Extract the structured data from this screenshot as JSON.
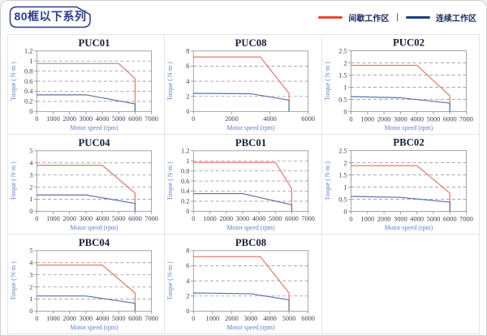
{
  "page": {
    "series_tag": "80框以下系列"
  },
  "legend": {
    "intermittent_label": "间歇工作区",
    "separator": "|",
    "continuous_label": "连续工作区",
    "intermittent_color": "#e8472b",
    "continuous_color": "#1e3f7f"
  },
  "colors": {
    "chart_red": "#e4796b",
    "chart_blue": "#5a70a5",
    "grid_line": "#9a9a9a",
    "plot_border": "#9a9a9a",
    "tag_border": "#2b3a8c"
  },
  "chart_data": [
    {
      "type": "line",
      "title": "PUC01",
      "xlabel": "Motor speed (rpm)",
      "ylabel": "Torque ( N·m )",
      "xlim": [
        0,
        7000
      ],
      "ylim": [
        0,
        1.2
      ],
      "xticks": [
        0,
        1000,
        2000,
        3000,
        4000,
        5000,
        6000,
        7000
      ],
      "yticks": [
        0,
        0.2,
        0.4,
        0.6,
        0.8,
        1,
        1.2
      ],
      "grid": "horizontal-dashed",
      "legend_position": "none",
      "series": [
        {
          "name": "间歇工作区",
          "color": "#e4796b",
          "points": [
            [
              0,
              0.95
            ],
            [
              5000,
              0.95
            ],
            [
              6000,
              0.65
            ],
            [
              6000,
              0
            ]
          ]
        },
        {
          "name": "连续工作区",
          "color": "#5a70a5",
          "points": [
            [
              0,
              0.33
            ],
            [
              3000,
              0.33
            ],
            [
              6000,
              0.15
            ],
            [
              6000,
              0
            ]
          ]
        }
      ]
    },
    {
      "type": "line",
      "title": "PUC08",
      "xlabel": "Motor speed (rpm)",
      "ylabel": "Torque ( N·m )",
      "xlim": [
        0,
        6000
      ],
      "ylim": [
        0,
        8
      ],
      "xticks": [
        0,
        2000,
        4000,
        6000
      ],
      "yticks": [
        0,
        2,
        4,
        6,
        8
      ],
      "grid": "horizontal-dashed",
      "legend_position": "none",
      "series": [
        {
          "name": "间歇工作区",
          "color": "#e4796b",
          "points": [
            [
              0,
              7.2
            ],
            [
              3500,
              7.2
            ],
            [
              5000,
              2.4
            ],
            [
              5000,
              0
            ]
          ]
        },
        {
          "name": "连续工作区",
          "color": "#5a70a5",
          "points": [
            [
              0,
              2.4
            ],
            [
              3000,
              2.35
            ],
            [
              5000,
              1.5
            ],
            [
              5000,
              0
            ]
          ]
        }
      ]
    },
    {
      "type": "line",
      "title": "PUC02",
      "xlabel": "Motor speed (rpm)",
      "ylabel": "Torque ( N·m )",
      "xlim": [
        0,
        7000
      ],
      "ylim": [
        0,
        2.5
      ],
      "xticks": [
        0,
        1000,
        2000,
        3000,
        4000,
        5000,
        6000,
        7000
      ],
      "yticks": [
        0,
        0.5,
        1,
        1.5,
        2,
        2.5
      ],
      "grid": "horizontal-dashed",
      "legend_position": "none",
      "series": [
        {
          "name": "间歇工作区",
          "color": "#e4796b",
          "points": [
            [
              0,
              1.9
            ],
            [
              4000,
              1.9
            ],
            [
              6000,
              0.65
            ],
            [
              6000,
              0
            ]
          ]
        },
        {
          "name": "连续工作区",
          "color": "#5a70a5",
          "points": [
            [
              0,
              0.62
            ],
            [
              3000,
              0.57
            ],
            [
              6000,
              0.35
            ],
            [
              6000,
              0
            ]
          ]
        }
      ]
    },
    {
      "type": "line",
      "title": "PUC04",
      "xlabel": "Motor speed (rpm)",
      "ylabel": "Torque ( N·m )",
      "xlim": [
        0,
        7000
      ],
      "ylim": [
        0,
        5
      ],
      "xticks": [
        0,
        1000,
        2000,
        3000,
        4000,
        5000,
        6000,
        7000
      ],
      "yticks": [
        0,
        1,
        2,
        3,
        4,
        5
      ],
      "grid": "horizontal-dashed",
      "legend_position": "none",
      "series": [
        {
          "name": "间歇工作区",
          "color": "#e4796b",
          "points": [
            [
              0,
              3.8
            ],
            [
              4000,
              3.8
            ],
            [
              6000,
              1.5
            ],
            [
              6000,
              0
            ]
          ]
        },
        {
          "name": "连续工作区",
          "color": "#5a70a5",
          "points": [
            [
              0,
              1.35
            ],
            [
              3000,
              1.35
            ],
            [
              6000,
              0.65
            ],
            [
              6000,
              0
            ]
          ]
        }
      ]
    },
    {
      "type": "line",
      "title": "PBC01",
      "xlabel": "Motor speed (rpm)",
      "ylabel": "Torque ( N·m )",
      "xlim": [
        0,
        7000
      ],
      "ylim": [
        0,
        1.2
      ],
      "xticks": [
        0,
        1000,
        2000,
        3000,
        4000,
        5000,
        6000,
        7000
      ],
      "yticks": [
        0,
        0.2,
        0.4,
        0.6,
        0.8,
        1,
        1.2
      ],
      "grid": "horizontal-dashed",
      "legend_position": "none",
      "series": [
        {
          "name": "间歇工作区",
          "color": "#e4796b",
          "points": [
            [
              0,
              0.97
            ],
            [
              5000,
              0.97
            ],
            [
              6000,
              0.45
            ],
            [
              6000,
              0
            ]
          ]
        },
        {
          "name": "连续工作区",
          "color": "#5a70a5",
          "points": [
            [
              0,
              0.35
            ],
            [
              3000,
              0.35
            ],
            [
              6000,
              0.13
            ],
            [
              6000,
              0
            ]
          ]
        }
      ]
    },
    {
      "type": "line",
      "title": "PBC02",
      "xlabel": "Motor speed (rpm)",
      "ylabel": "Torque ( N·m )",
      "xlim": [
        0,
        7000
      ],
      "ylim": [
        0,
        2.5
      ],
      "xticks": [
        0,
        1000,
        2000,
        3000,
        4000,
        5000,
        6000,
        7000
      ],
      "yticks": [
        0,
        0.5,
        1,
        1.5,
        2,
        2.5
      ],
      "grid": "horizontal-dashed",
      "legend_position": "none",
      "series": [
        {
          "name": "间歇工作区",
          "color": "#e4796b",
          "points": [
            [
              0,
              1.88
            ],
            [
              4000,
              1.88
            ],
            [
              6000,
              0.75
            ],
            [
              6000,
              0
            ]
          ]
        },
        {
          "name": "连续工作区",
          "color": "#5a70a5",
          "points": [
            [
              0,
              0.62
            ],
            [
              3000,
              0.58
            ],
            [
              6000,
              0.38
            ],
            [
              6000,
              0
            ]
          ]
        }
      ]
    },
    {
      "type": "line",
      "title": "PBC04",
      "xlabel": "Motor speed (rpm)",
      "ylabel": "Torque ( N·m )",
      "xlim": [
        0,
        7000
      ],
      "ylim": [
        0,
        5
      ],
      "xticks": [
        0,
        1000,
        2000,
        3000,
        4000,
        5000,
        6000,
        7000
      ],
      "yticks": [
        0,
        1,
        2,
        3,
        4,
        5
      ],
      "grid": "horizontal-dashed",
      "legend_position": "none",
      "series": [
        {
          "name": "间歇工作区",
          "color": "#e4796b",
          "points": [
            [
              0,
              3.8
            ],
            [
              4000,
              3.8
            ],
            [
              6000,
              1.5
            ],
            [
              6000,
              0
            ]
          ]
        },
        {
          "name": "连续工作区",
          "color": "#5a70a5",
          "points": [
            [
              0,
              1.25
            ],
            [
              3000,
              1.25
            ],
            [
              6000,
              0.65
            ],
            [
              6000,
              0
            ]
          ]
        }
      ]
    },
    {
      "type": "line",
      "title": "PBC08",
      "xlabel": "Motor speed (rpm)",
      "ylabel": "Torque ( N·m )",
      "xlim": [
        0,
        6000
      ],
      "ylim": [
        0,
        8
      ],
      "xticks": [
        0,
        1000,
        2000,
        3000,
        4000,
        5000,
        6000
      ],
      "yticks": [
        0,
        2,
        4,
        6,
        8
      ],
      "grid": "horizontal-dashed",
      "legend_position": "none",
      "series": [
        {
          "name": "间歇工作区",
          "color": "#e4796b",
          "points": [
            [
              0,
              7.2
            ],
            [
              3500,
              7.2
            ],
            [
              5000,
              2.4
            ],
            [
              5000,
              0
            ]
          ]
        },
        {
          "name": "连续工作区",
          "color": "#5a70a5",
          "points": [
            [
              0,
              2.4
            ],
            [
              3000,
              2.3
            ],
            [
              5000,
              1.5
            ],
            [
              5000,
              0
            ]
          ]
        }
      ]
    }
  ]
}
